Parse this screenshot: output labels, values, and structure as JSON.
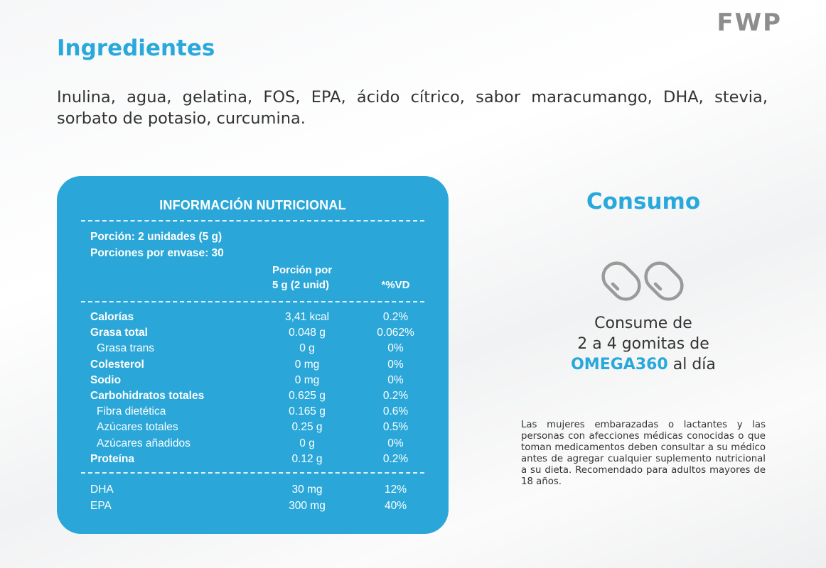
{
  "logo": "FWP",
  "ingredients": {
    "title": "Ingredientes",
    "text": "Inulina, agua, gelatina, FOS, EPA, ácido cítrico, sabor maracumango, DHA, stevia, sorbato de potasio, curcumina."
  },
  "nutrition": {
    "title": "INFORMACIÓN NUTRICIONAL",
    "serving_size": "Porción: 2 unidades (5 g)",
    "servings_per_container": "Porciones por envase: 30",
    "col_amount_line1": "Porción por",
    "col_amount_line2": "5 g (2 unid)",
    "col_dv": "*%VD",
    "rows": [
      {
        "label": "Calorías",
        "amount": "3,41 kcal",
        "dv": "0.2%"
      },
      {
        "label": "Grasa total",
        "amount": "0.048 g",
        "dv": "0.062%"
      },
      {
        "label": "Grasa trans",
        "amount": "0 g",
        "dv": "0%"
      },
      {
        "label": "Colesterol",
        "amount": "0 mg",
        "dv": "0%"
      },
      {
        "label": "Sodio",
        "amount": "0 mg",
        "dv": "0%"
      },
      {
        "label": "Carbohidratos totales",
        "amount": "0.625 g",
        "dv": "0.2%"
      },
      {
        "label": "Fibra dietética",
        "amount": "0.165 g",
        "dv": "0.6%"
      },
      {
        "label": "Azúcares totales",
        "amount": "0.25 g",
        "dv": "0.5%"
      },
      {
        "label": "Azúcares añadidos",
        "amount": "0 g",
        "dv": "0%"
      },
      {
        "label": "Proteína",
        "amount": "0.12 g",
        "dv": "0.2%"
      }
    ],
    "extra_rows": [
      {
        "label": "DHA",
        "amount": "30 mg",
        "dv": "12%"
      },
      {
        "label": "EPA",
        "amount": "300 mg",
        "dv": "40%"
      }
    ]
  },
  "consumo": {
    "title": "Consumo",
    "icon": "gummies-icon",
    "line1": "Consume de",
    "line2": "2 a 4 gomitas de",
    "brand": "OMEGA360",
    "line3_suffix": " al día",
    "warning": "Las mujeres embarazadas o lactantes y las personas con afecciones médicas conocidas o que toman medicamentos deben consultar a su médico antes de agregar cualquier suplemento nutricional a su dieta. Recomendado para adultos mayores de 18 años."
  },
  "colors": {
    "accent": "#29a8dc",
    "panel": "#2aa7d8",
    "logo": "#8d8d8d",
    "text": "#333333"
  }
}
